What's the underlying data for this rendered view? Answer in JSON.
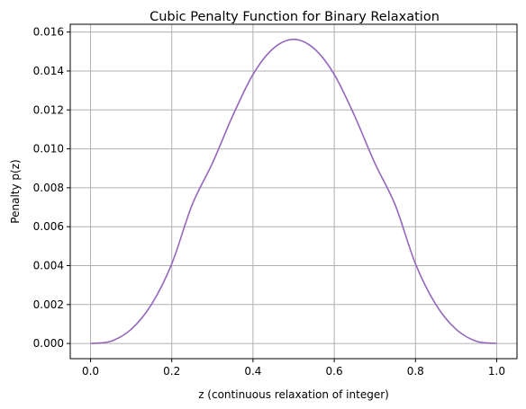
{
  "chart_data": {
    "type": "line",
    "title": "Cubic Penalty Function for Binary Relaxation",
    "xlabel": "z (continuous relaxation of integer)",
    "ylabel": "Penalty p(z)",
    "xlim": [
      -0.05,
      1.05
    ],
    "ylim": [
      -0.00078,
      0.0164
    ],
    "xticks": [
      0.0,
      0.2,
      0.4,
      0.6,
      0.8,
      1.0
    ],
    "xtick_labels": [
      "0.0",
      "0.2",
      "0.4",
      "0.6",
      "0.8",
      "1.0"
    ],
    "yticks": [
      0.0,
      0.002,
      0.004,
      0.006,
      0.008,
      0.01,
      0.012,
      0.014,
      0.016
    ],
    "ytick_labels": [
      "0.000",
      "0.002",
      "0.004",
      "0.006",
      "0.008",
      "0.010",
      "0.012",
      "0.014",
      "0.016"
    ],
    "grid": true,
    "series": [
      {
        "color": "#9467bd",
        "x": [
          0.0,
          0.05,
          0.1,
          0.15,
          0.2,
          0.25,
          0.3,
          0.35,
          0.4,
          0.45,
          0.5,
          0.55,
          0.6,
          0.65,
          0.7,
          0.75,
          0.8,
          0.85,
          0.9,
          0.95,
          1.0
        ],
        "y": [
          0.0,
          0.000114,
          0.000729,
          0.002005,
          0.004096,
          0.007119,
          0.009261,
          0.011697,
          0.013824,
          0.015159,
          0.015625,
          0.015159,
          0.013824,
          0.011697,
          0.009261,
          0.007119,
          0.004096,
          0.002005,
          0.000729,
          0.000114,
          0.0
        ]
      }
    ]
  }
}
